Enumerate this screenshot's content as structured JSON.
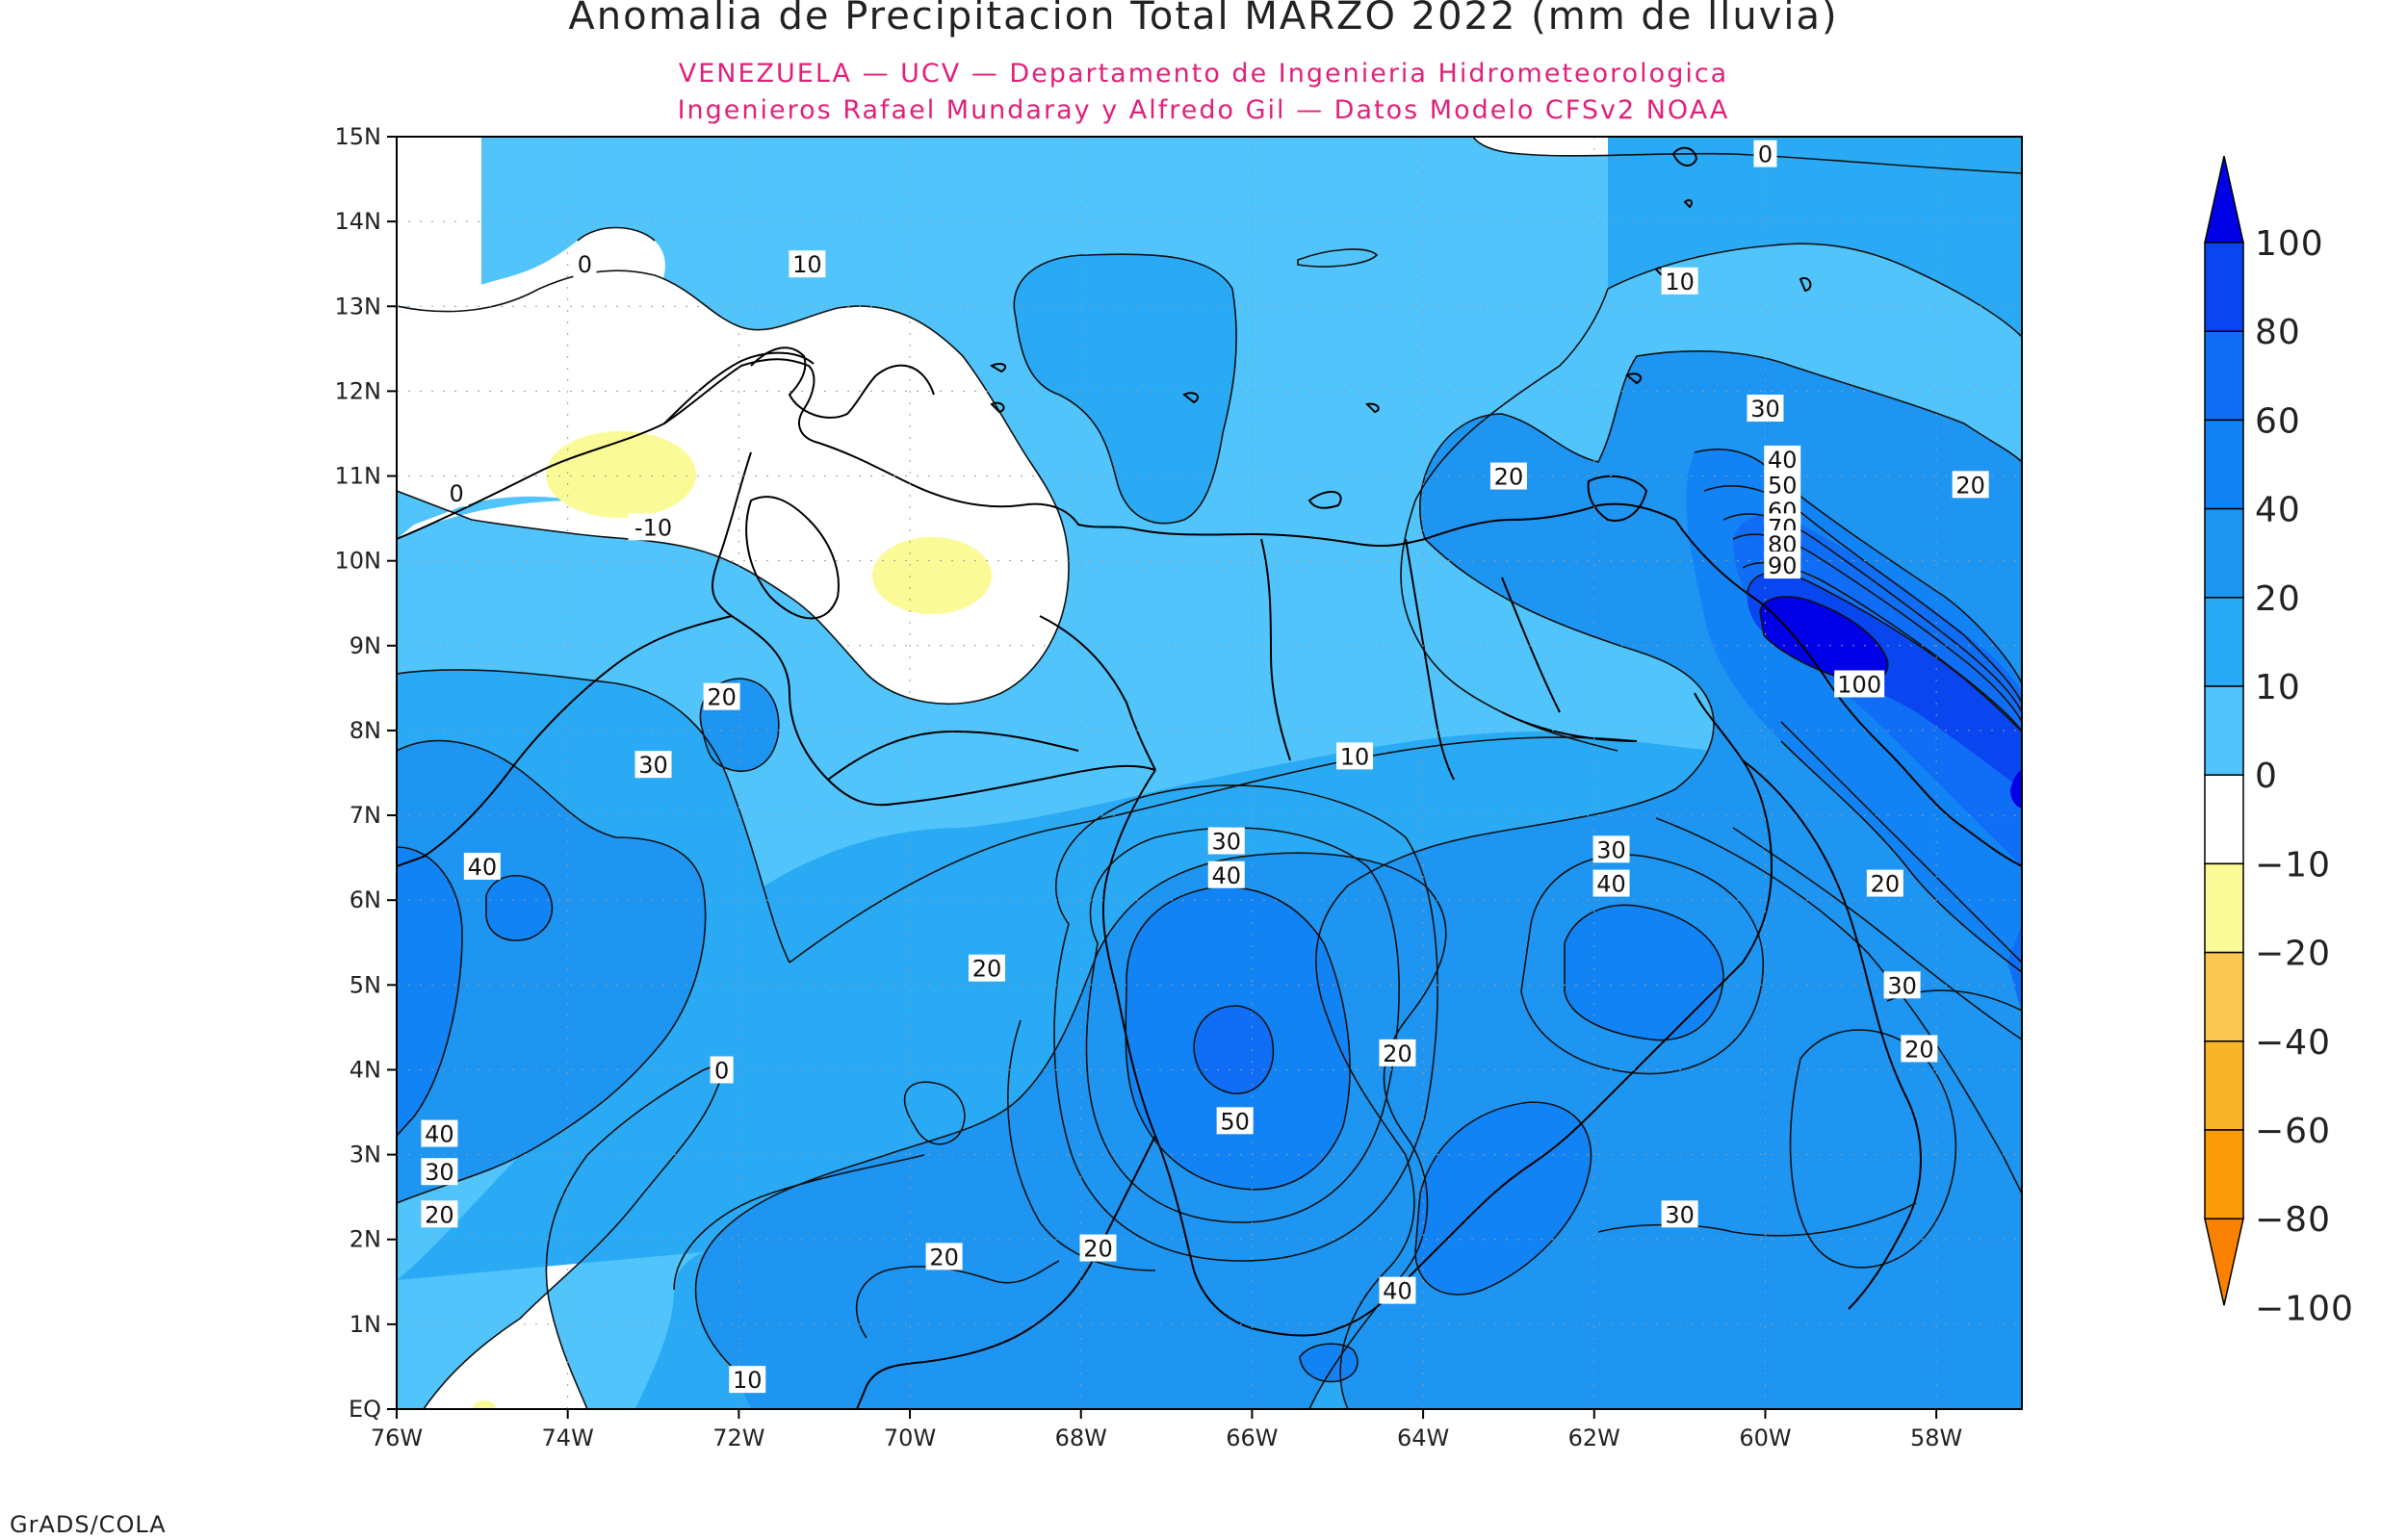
{
  "title": "Anomalia de Precipitacion Total MARZO 2022 (mm de lluvia)",
  "subtitle_lines": [
    "VENEZUELA — UCV — Departamento de Ingenieria Hidrometeorologica",
    "Ingenieros Rafael Mundaray y Alfredo Gil — Datos Modelo CFSv2 NOAA"
  ],
  "credit": "GrADS/COLA",
  "map": {
    "lon_range": [
      -76,
      -57
    ],
    "lat_range": [
      0,
      15
    ],
    "lon_ticks": [
      {
        "value": -76,
        "label": "76W"
      },
      {
        "value": -74,
        "label": "74W"
      },
      {
        "value": -72,
        "label": "72W"
      },
      {
        "value": -70,
        "label": "70W"
      },
      {
        "value": -68,
        "label": "68W"
      },
      {
        "value": -66,
        "label": "66W"
      },
      {
        "value": -64,
        "label": "64W"
      },
      {
        "value": -62,
        "label": "62W"
      },
      {
        "value": -60,
        "label": "60W"
      },
      {
        "value": -58,
        "label": "58W"
      }
    ],
    "lat_ticks": [
      {
        "value": 0,
        "label": "EQ"
      },
      {
        "value": 1,
        "label": "1N"
      },
      {
        "value": 2,
        "label": "2N"
      },
      {
        "value": 3,
        "label": "3N"
      },
      {
        "value": 4,
        "label": "4N"
      },
      {
        "value": 5,
        "label": "5N"
      },
      {
        "value": 6,
        "label": "6N"
      },
      {
        "value": 7,
        "label": "7N"
      },
      {
        "value": 8,
        "label": "8N"
      },
      {
        "value": 9,
        "label": "9N"
      },
      {
        "value": 10,
        "label": "10N"
      },
      {
        "value": 11,
        "label": "11N"
      },
      {
        "value": 12,
        "label": "12N"
      },
      {
        "value": 13,
        "label": "13N"
      },
      {
        "value": 14,
        "label": "14N"
      },
      {
        "value": 15,
        "label": "15N"
      }
    ],
    "contour_labels": [
      {
        "lon": -60.0,
        "lat": 14.8,
        "text": "0"
      },
      {
        "lon": -71.2,
        "lat": 13.5,
        "text": "10"
      },
      {
        "lon": -61.0,
        "lat": 13.3,
        "text": "10"
      },
      {
        "lon": -73.8,
        "lat": 13.5,
        "text": "0"
      },
      {
        "lon": -75.3,
        "lat": 10.8,
        "text": "0"
      },
      {
        "lon": -73.0,
        "lat": 10.4,
        "text": "-10"
      },
      {
        "lon": -60.0,
        "lat": 11.8,
        "text": "30"
      },
      {
        "lon": -59.8,
        "lat": 11.2,
        "text": "40"
      },
      {
        "lon": -59.8,
        "lat": 10.9,
        "text": "50"
      },
      {
        "lon": -59.8,
        "lat": 10.6,
        "text": "60"
      },
      {
        "lon": -59.8,
        "lat": 10.4,
        "text": "70"
      },
      {
        "lon": -59.8,
        "lat": 10.2,
        "text": "80"
      },
      {
        "lon": -59.8,
        "lat": 9.95,
        "text": "90"
      },
      {
        "lon": -58.9,
        "lat": 8.55,
        "text": "100"
      },
      {
        "lon": -63.0,
        "lat": 11.0,
        "text": "20"
      },
      {
        "lon": -57.6,
        "lat": 10.9,
        "text": "20"
      },
      {
        "lon": -72.2,
        "lat": 8.4,
        "text": "20"
      },
      {
        "lon": -73.0,
        "lat": 7.6,
        "text": "30"
      },
      {
        "lon": -64.8,
        "lat": 7.7,
        "text": "10"
      },
      {
        "lon": -75.0,
        "lat": 6.4,
        "text": "40"
      },
      {
        "lon": -66.3,
        "lat": 6.7,
        "text": "30"
      },
      {
        "lon": -66.3,
        "lat": 6.3,
        "text": "40"
      },
      {
        "lon": -61.8,
        "lat": 6.6,
        "text": "30"
      },
      {
        "lon": -61.8,
        "lat": 6.2,
        "text": "40"
      },
      {
        "lon": -58.6,
        "lat": 6.2,
        "text": "20"
      },
      {
        "lon": -69.1,
        "lat": 5.2,
        "text": "20"
      },
      {
        "lon": -58.4,
        "lat": 5.0,
        "text": "30"
      },
      {
        "lon": -64.3,
        "lat": 4.2,
        "text": "20"
      },
      {
        "lon": -58.2,
        "lat": 4.25,
        "text": "20"
      },
      {
        "lon": -72.2,
        "lat": 4.0,
        "text": "0"
      },
      {
        "lon": -66.2,
        "lat": 3.4,
        "text": "50"
      },
      {
        "lon": -75.5,
        "lat": 3.25,
        "text": "40"
      },
      {
        "lon": -75.5,
        "lat": 2.8,
        "text": "30"
      },
      {
        "lon": -75.5,
        "lat": 2.3,
        "text": "20"
      },
      {
        "lon": -61.0,
        "lat": 2.3,
        "text": "30"
      },
      {
        "lon": -67.8,
        "lat": 1.9,
        "text": "20"
      },
      {
        "lon": -69.6,
        "lat": 1.8,
        "text": "20"
      },
      {
        "lon": -64.3,
        "lat": 1.4,
        "text": "40"
      },
      {
        "lon": -71.9,
        "lat": 0.35,
        "text": "10"
      }
    ]
  },
  "colorbar": {
    "levels": [
      "100",
      "80",
      "60",
      "40",
      "20",
      "10",
      "0",
      "−10",
      "−20",
      "−40",
      "−60",
      "−80",
      "−100"
    ],
    "colors_top_to_bottom": [
      "#0000e6",
      "#0a46f0",
      "#0f6ef5",
      "#1282f5",
      "#1e96f0",
      "#28aaf5",
      "#50c3fa",
      "#ffffff",
      "#fafa96",
      "#fac850",
      "#fab428",
      "#fa9b0a",
      "#fa8200"
    ]
  },
  "palette": {
    "c0_10": "#50c4fb",
    "c10_20": "#2aaaf5",
    "c20_40": "#1d95f1",
    "c40_60": "#1283f4",
    "c60_80": "#0f6ef5",
    "c80_100": "#0a46f0",
    "c100": "#0000e6",
    "neg": "#ffffff",
    "neg10": "#fafa96"
  }
}
